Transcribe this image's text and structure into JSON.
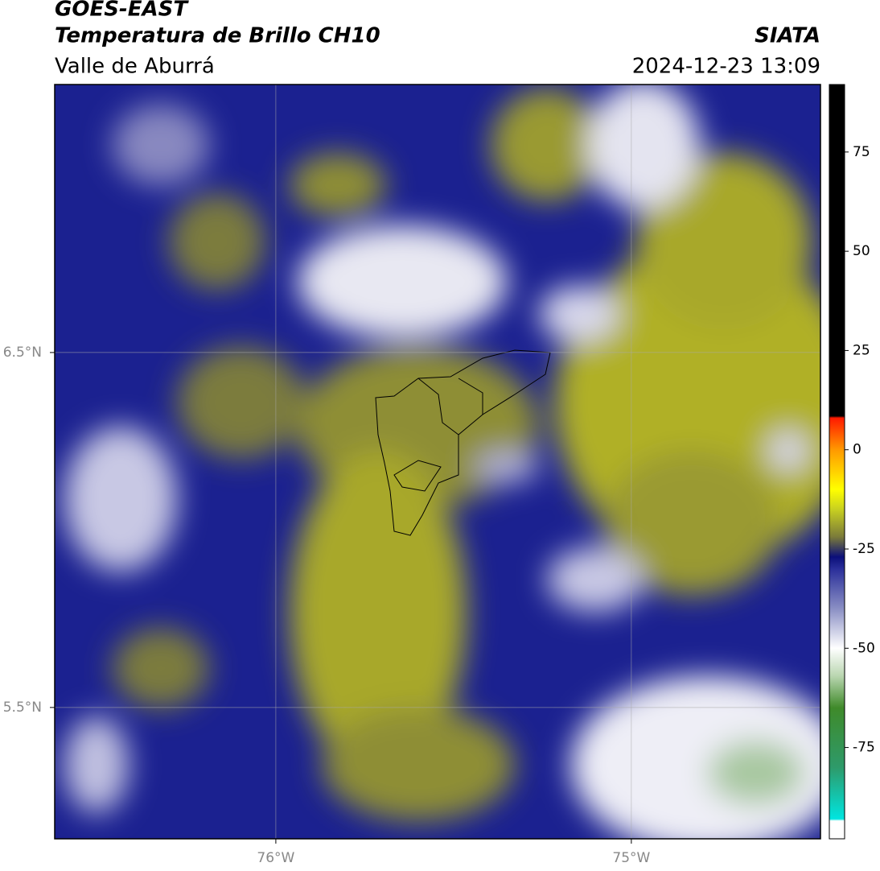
{
  "header": {
    "title": "GOES-EAST",
    "subtitle": "Temperatura de Brillo CH10",
    "region": "Valle de Aburrá",
    "source": "SIATA",
    "datetime": "2024-12-23 13:09"
  },
  "map": {
    "xlim": [
      -76.622,
      -74.468
    ],
    "ylim": [
      5.13,
      7.255
    ],
    "xticks": [
      {
        "value": -76,
        "label": "76°W"
      },
      {
        "value": -75,
        "label": "75°W"
      }
    ],
    "yticks": [
      {
        "value": 6.5,
        "label": "6.5°N"
      },
      {
        "value": 5.5,
        "label": "5.5°N"
      }
    ],
    "grid": true
  },
  "colorbar": {
    "range": [
      -98,
      92
    ],
    "ticks": [
      75,
      50,
      25,
      0,
      -25,
      -50,
      -75
    ],
    "stops": [
      {
        "value": -98,
        "color": "#ffffff"
      },
      {
        "value": -93.5,
        "color": "#ffffff"
      },
      {
        "value": -93,
        "color": "#00e5e0"
      },
      {
        "value": -80,
        "color": "#2e9a6a"
      },
      {
        "value": -65,
        "color": "#3f8a2a"
      },
      {
        "value": -57,
        "color": "#b9d6b0"
      },
      {
        "value": -50,
        "color": "#ffffff"
      },
      {
        "value": -40,
        "color": "#8a8fc4"
      },
      {
        "value": -30,
        "color": "#2a2f9a"
      },
      {
        "value": -27,
        "color": "#0b0f7a"
      },
      {
        "value": -22,
        "color": "#7a7a3a"
      },
      {
        "value": -15,
        "color": "#c8d020"
      },
      {
        "value": -10,
        "color": "#ffff00"
      },
      {
        "value": 0,
        "color": "#ff9900"
      },
      {
        "value": 8,
        "color": "#ff1a00"
      },
      {
        "value": 8.5,
        "color": "#000000"
      },
      {
        "value": 92,
        "color": "#000000"
      }
    ]
  }
}
